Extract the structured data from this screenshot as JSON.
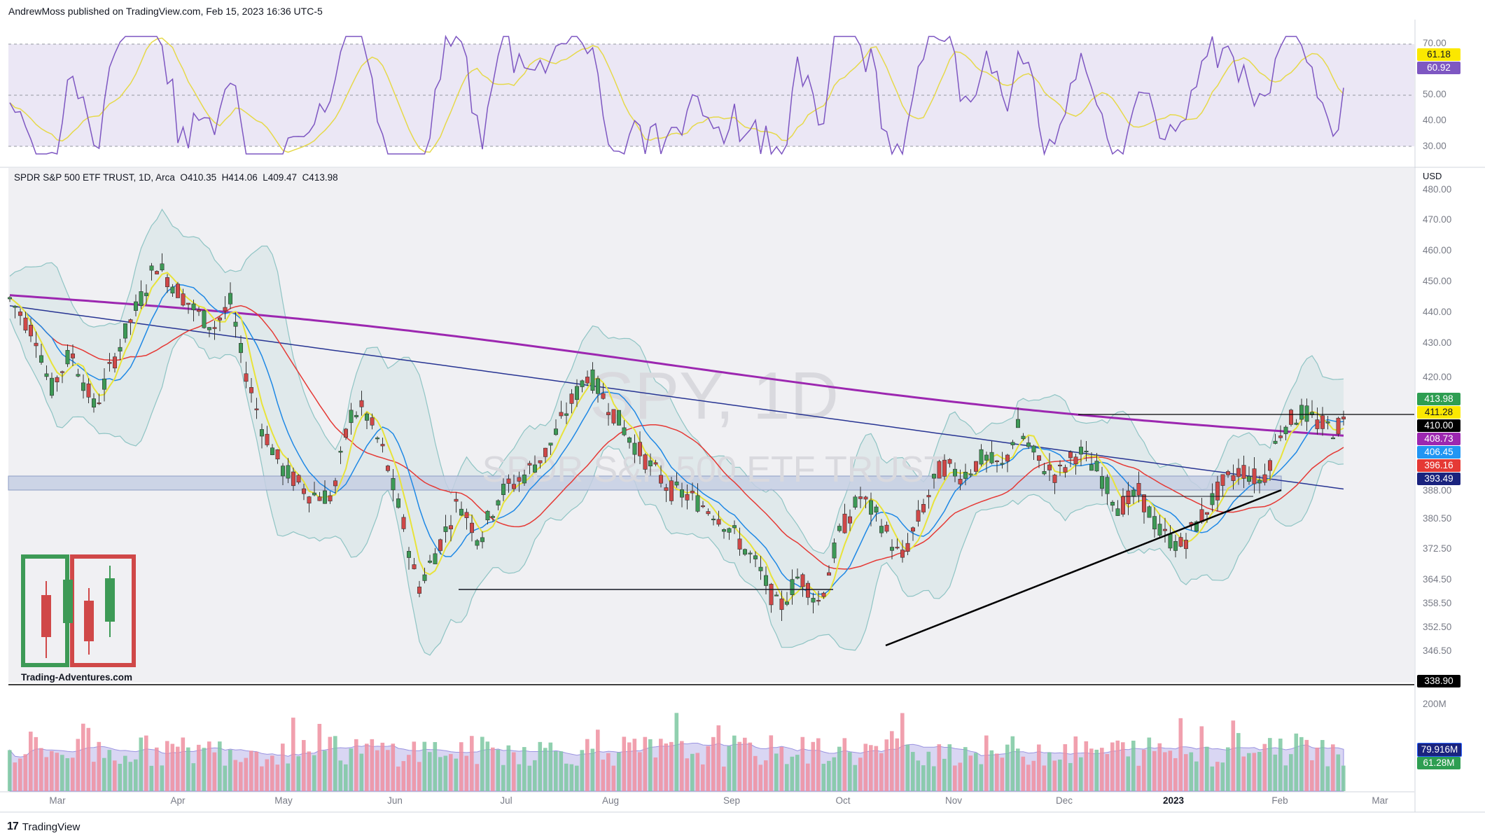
{
  "header": {
    "text": "AndrewMoss published on TradingView.com, Feb 15, 2023 16:36 UTC-5"
  },
  "footer": {
    "brand": "TradingView",
    "logo_icon": "tradingview-logo-icon"
  },
  "legend": {
    "symbol": "SPDR S&P 500 ETF TRUST, 1D, Arca",
    "o": "O410.35",
    "h": "H414.06",
    "l": "L409.47",
    "c": "C413.98"
  },
  "currency": "USD",
  "watermark": {
    "line1": "SPY, 1D",
    "line2": "SPDR S&P 500 ETF TRUST"
  },
  "brand_logo": {
    "text": "Trading-Adventures.com",
    "icon": "candlestick-logo-icon"
  },
  "colors": {
    "up": "#3d9a56",
    "down": "#d04848",
    "sma200": "#9c27b0",
    "sma50": "#e53935",
    "sma20": "#1e88e5",
    "ema9": "#e8e33a",
    "sma_long": "#283593",
    "rsi": "#7e57c2",
    "rsi_ma": "#e6d94a"
  },
  "rsi_axis": {
    "ticks": [
      "70.00",
      "50.00",
      "40.00",
      "30.00"
    ],
    "badge_ma": "61.18",
    "badge_rsi": "60.92"
  },
  "price_axis": {
    "ticks": [
      "480.00",
      "470.00",
      "460.00",
      "450.00",
      "440.00",
      "430.00",
      "420.00",
      "388.00",
      "380.50",
      "372.50",
      "364.50",
      "358.50",
      "352.50",
      "346.50"
    ],
    "badges": [
      {
        "value": "413.98",
        "bg": "#2e9e52",
        "fg": "#ffffff"
      },
      {
        "value": "411.28",
        "bg": "#fbe800",
        "fg": "#131722"
      },
      {
        "value": "410.00",
        "bg": "#000000",
        "fg": "#ffffff"
      },
      {
        "value": "408.73",
        "bg": "#9c27b0",
        "fg": "#ffffff"
      },
      {
        "value": "406.45",
        "bg": "#2196f3",
        "fg": "#ffffff"
      },
      {
        "value": "396.16",
        "bg": "#e53935",
        "fg": "#ffffff"
      },
      {
        "value": "393.49",
        "bg": "#1a237e",
        "fg": "#ffffff"
      }
    ],
    "bottom_badge": "338.90"
  },
  "volume_axis": {
    "tick": "200M",
    "badge_avg": "79.916M",
    "badge_vol": "61.28M"
  },
  "time_axis": {
    "months": [
      "Mar",
      "Apr",
      "May",
      "Jun",
      "Jul",
      "Aug",
      "Sep",
      "Oct",
      "Nov",
      "Dec",
      "2023",
      "Feb",
      "Mar"
    ]
  },
  "chart_data": {
    "type": "candlestick",
    "symbol": "SPY",
    "interval": "1D",
    "last": {
      "open": 410.35,
      "high": 414.06,
      "low": 409.47,
      "close": 413.98
    },
    "price_levels": {
      "sma200": 408.73,
      "sma20": 406.45,
      "sma50": 396.16,
      "sma_long": 393.49,
      "ema9": 411.28,
      "horizontal_line": 410.0
    },
    "rsi": {
      "value": 60.92,
      "ma": 61.18,
      "levels": [
        70,
        50,
        30
      ]
    },
    "volume": {
      "last": "61.28M",
      "avg": "79.916M"
    },
    "x_range": [
      "2022-02-15",
      "2023-03-15"
    ],
    "ylim": [
      338.9,
      480
    ]
  }
}
